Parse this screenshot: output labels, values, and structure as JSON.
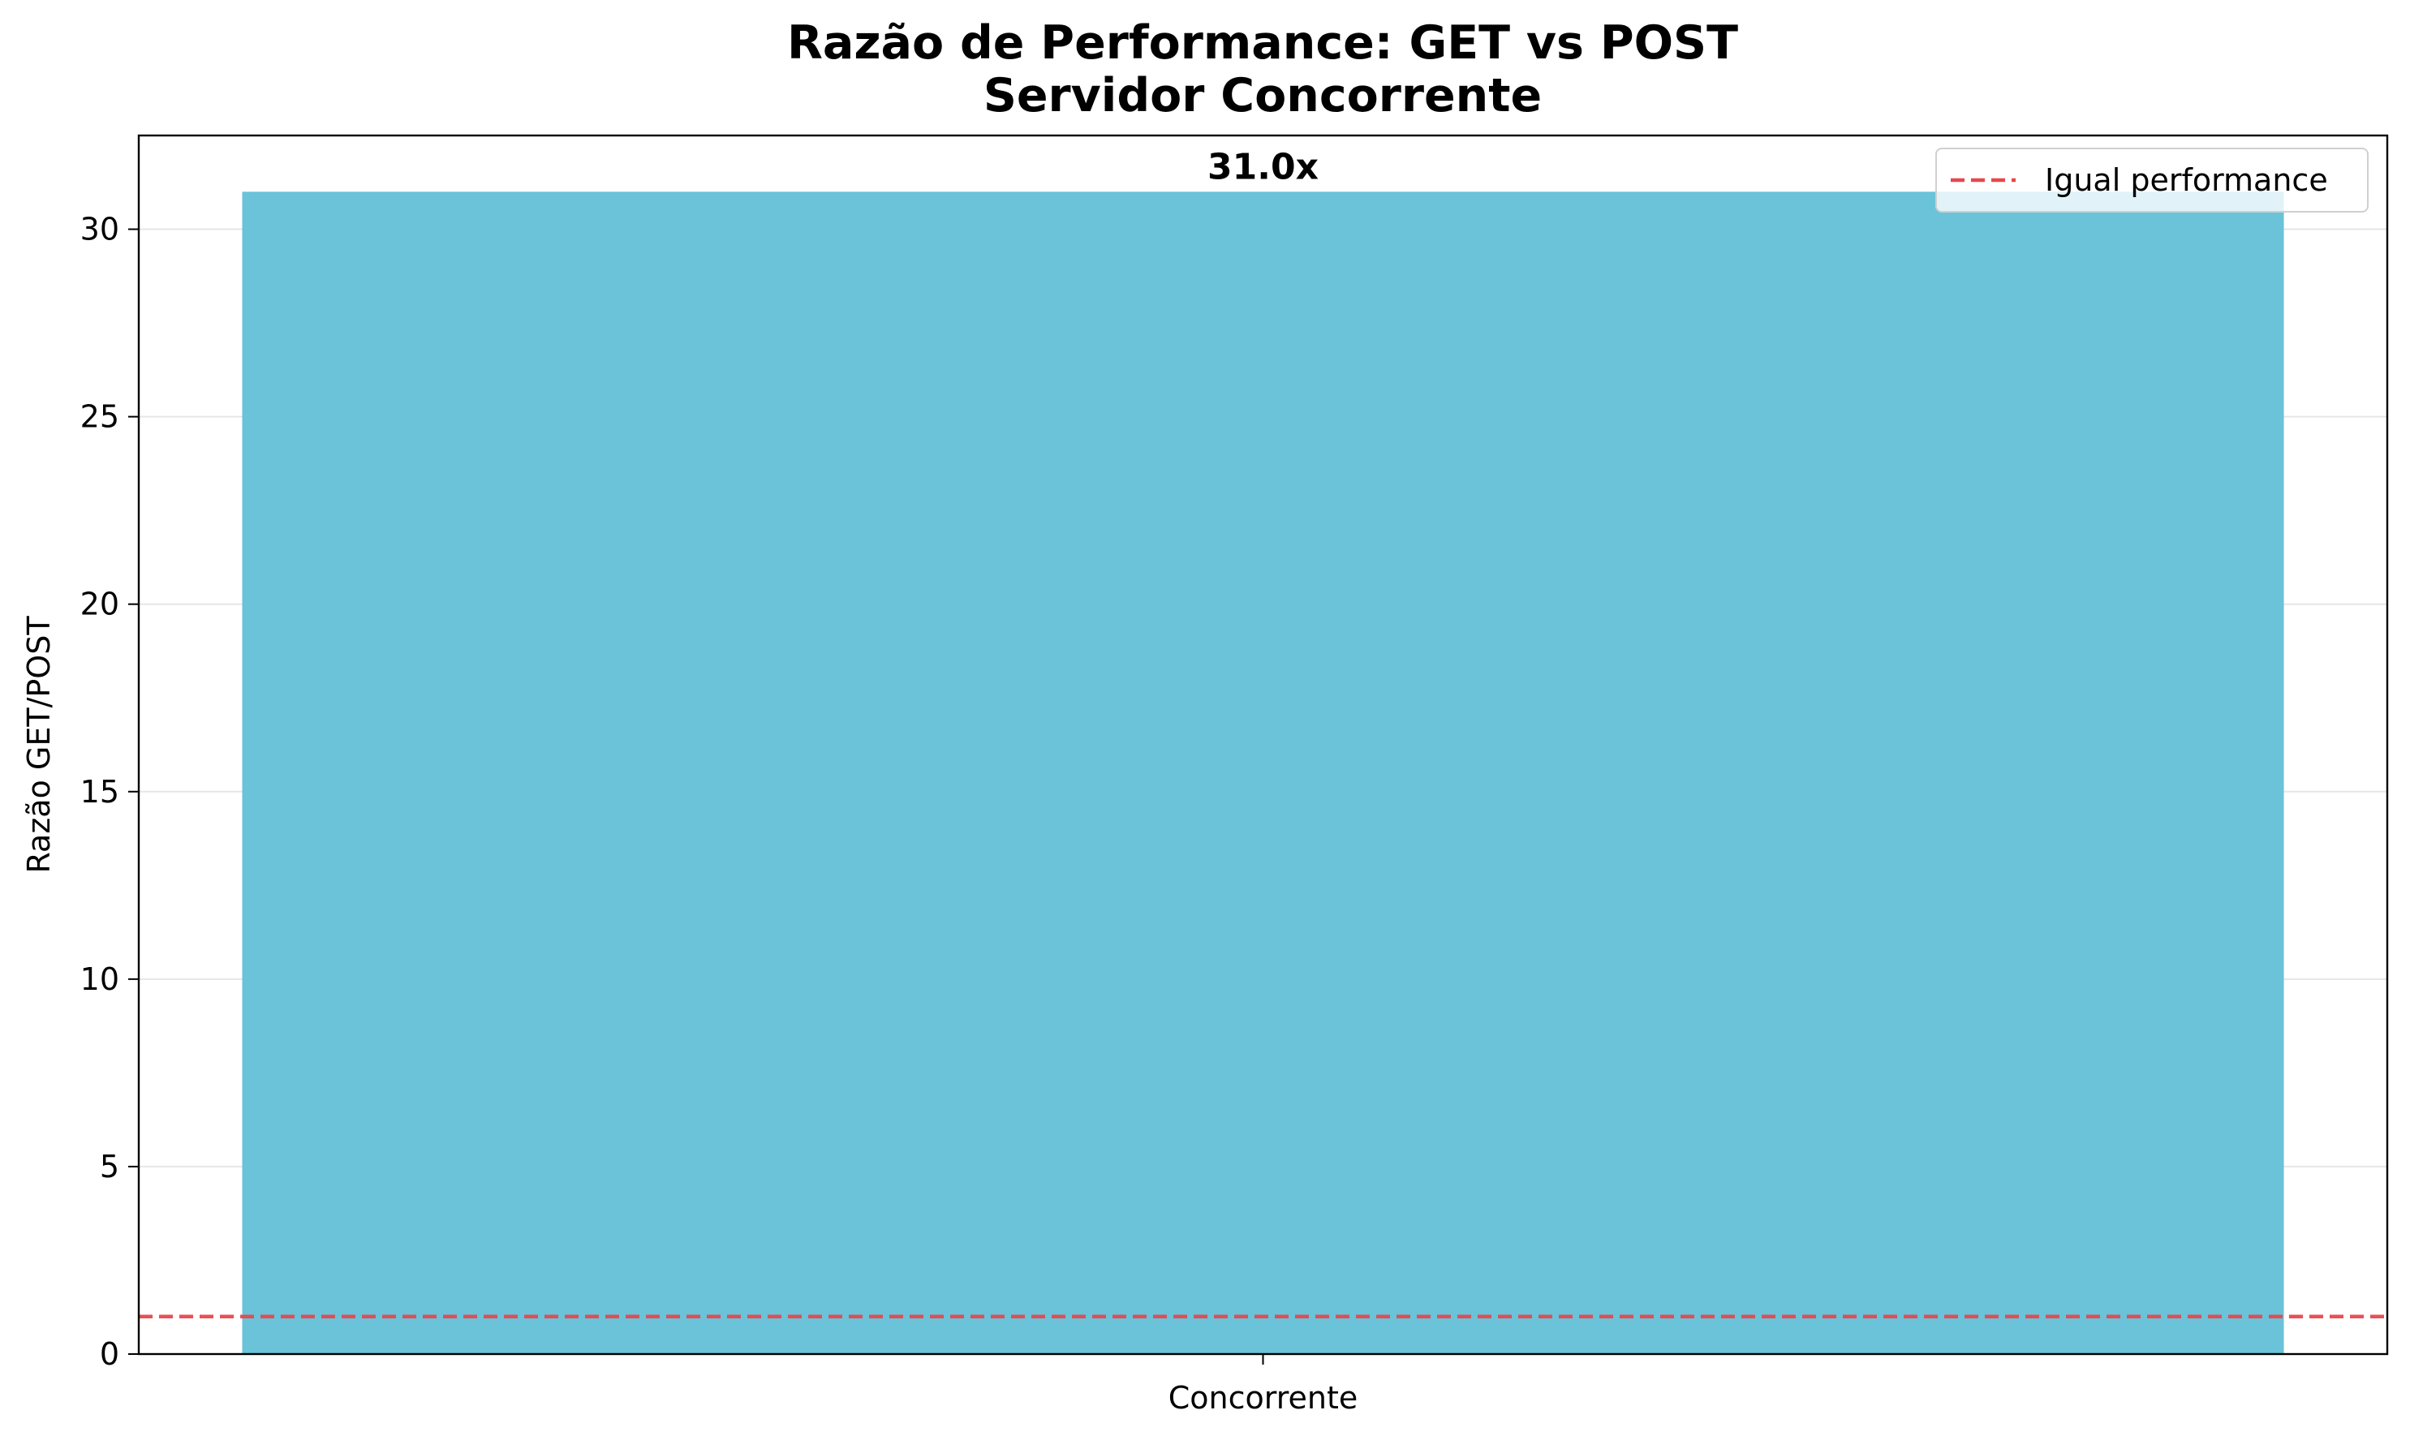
{
  "chart_data": {
    "type": "bar",
    "title": "Razão de Performance: GET vs POST",
    "subtitle": "Servidor Concorrente",
    "xlabel": "",
    "ylabel": "Razão GET/POST",
    "categories": [
      "Concorrente"
    ],
    "values": [
      31.0
    ],
    "value_labels": [
      "31.0x"
    ],
    "ylim": [
      0,
      32.5
    ],
    "yticks": [
      0,
      5,
      10,
      15,
      20,
      25,
      30
    ],
    "grid": "y",
    "reference_line": {
      "y": 1,
      "label": "Igual performance",
      "style": "dashed",
      "color": "#e8474c"
    },
    "legend": {
      "position": "top-right",
      "entries": [
        "Igual performance"
      ]
    },
    "colors": {
      "bar": "#6ac3d9",
      "reference": "#e8474c"
    }
  }
}
